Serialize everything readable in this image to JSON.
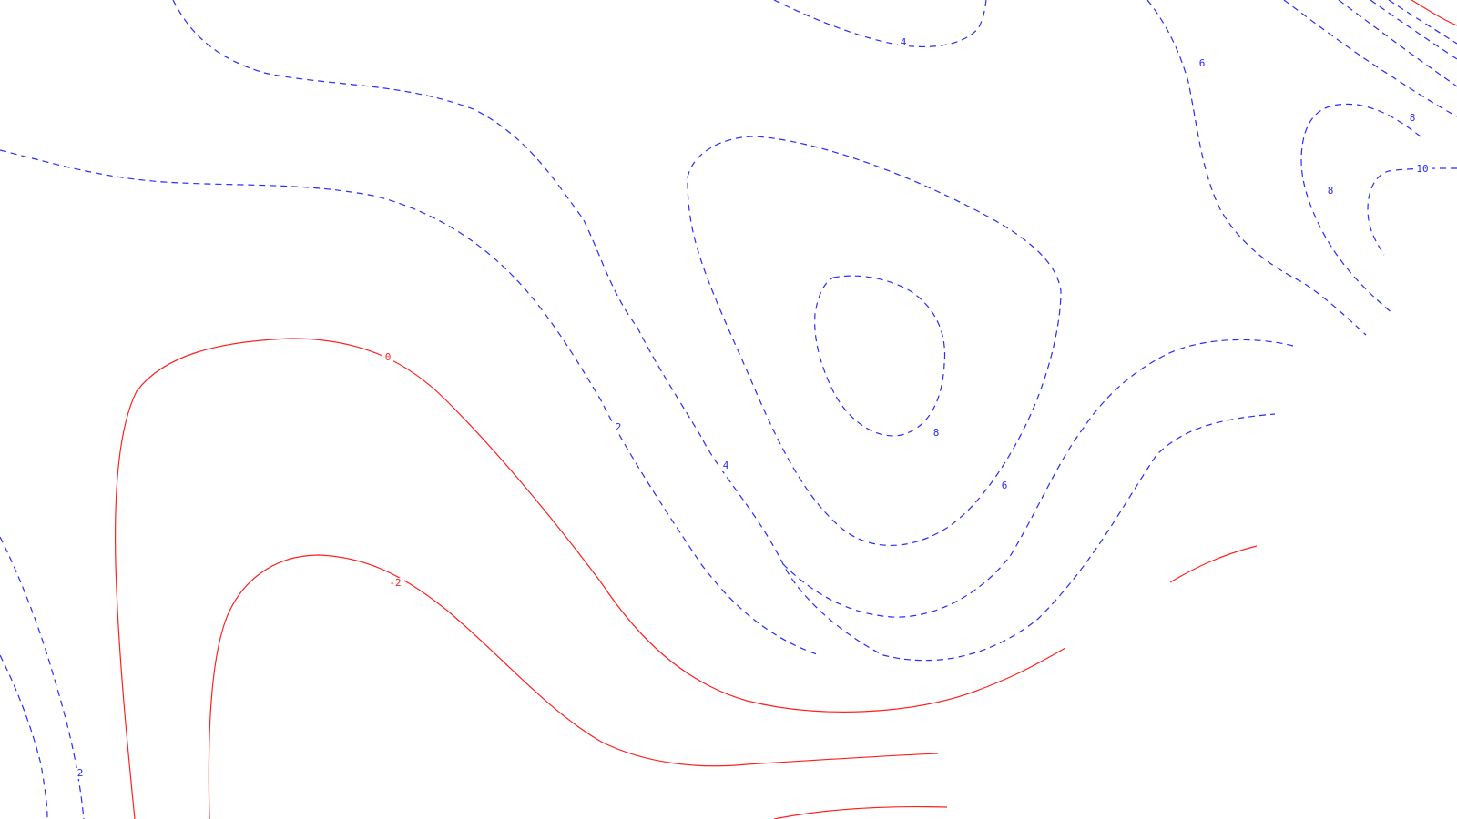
{
  "map": {
    "colors": {
      "positive": "#2a2aff",
      "negative": "#ff2020",
      "background": "#ffffff"
    },
    "line_styles": {
      "positive": "dashed",
      "negative": "solid"
    },
    "contour_labels": [
      {
        "text": "4",
        "sign": "positive"
      },
      {
        "text": "6",
        "sign": "positive"
      },
      {
        "text": "8",
        "sign": "positive"
      },
      {
        "text": "10",
        "sign": "positive"
      },
      {
        "text": "8",
        "sign": "positive"
      },
      {
        "text": "2",
        "sign": "positive"
      },
      {
        "text": "4",
        "sign": "positive"
      },
      {
        "text": "8",
        "sign": "positive"
      },
      {
        "text": "6",
        "sign": "positive"
      },
      {
        "text": "0",
        "sign": "negative"
      },
      {
        "text": "-2",
        "sign": "negative"
      },
      {
        "text": "2",
        "sign": "positive"
      }
    ]
  }
}
